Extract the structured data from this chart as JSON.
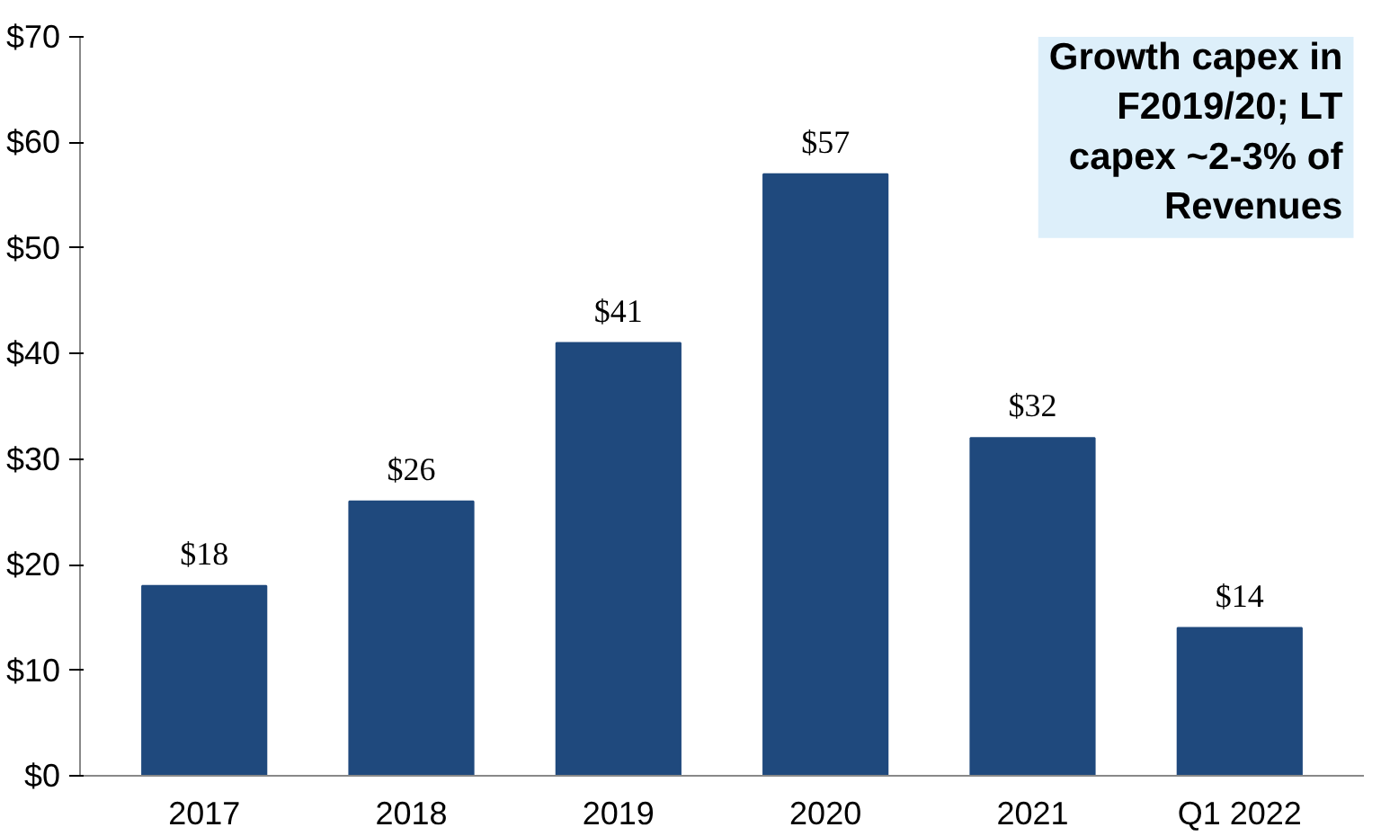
{
  "chart_data": {
    "type": "bar",
    "categories": [
      "2017",
      "2018",
      "2019",
      "2020",
      "2021",
      "Q1 2022"
    ],
    "values": [
      18,
      26,
      41,
      57,
      32,
      14
    ],
    "value_labels": [
      "$18",
      "$26",
      "$41",
      "$57",
      "$32",
      "$14"
    ],
    "color": "#1f497d",
    "ylim": [
      0,
      70
    ],
    "yticks": [
      {
        "value": 0,
        "label": "$0"
      },
      {
        "value": 10,
        "label": "$10"
      },
      {
        "value": 20,
        "label": "$20"
      },
      {
        "value": 30,
        "label": "$30"
      },
      {
        "value": 40,
        "label": "$40"
      },
      {
        "value": 50,
        "label": "$50"
      },
      {
        "value": 60,
        "label": "$60"
      },
      {
        "value": 70,
        "label": "$70"
      }
    ],
    "grid": false,
    "annotations": [
      "Growth capex in\nF2019/20; LT\ncapex ~2-3% of\nRevenues"
    ]
  }
}
